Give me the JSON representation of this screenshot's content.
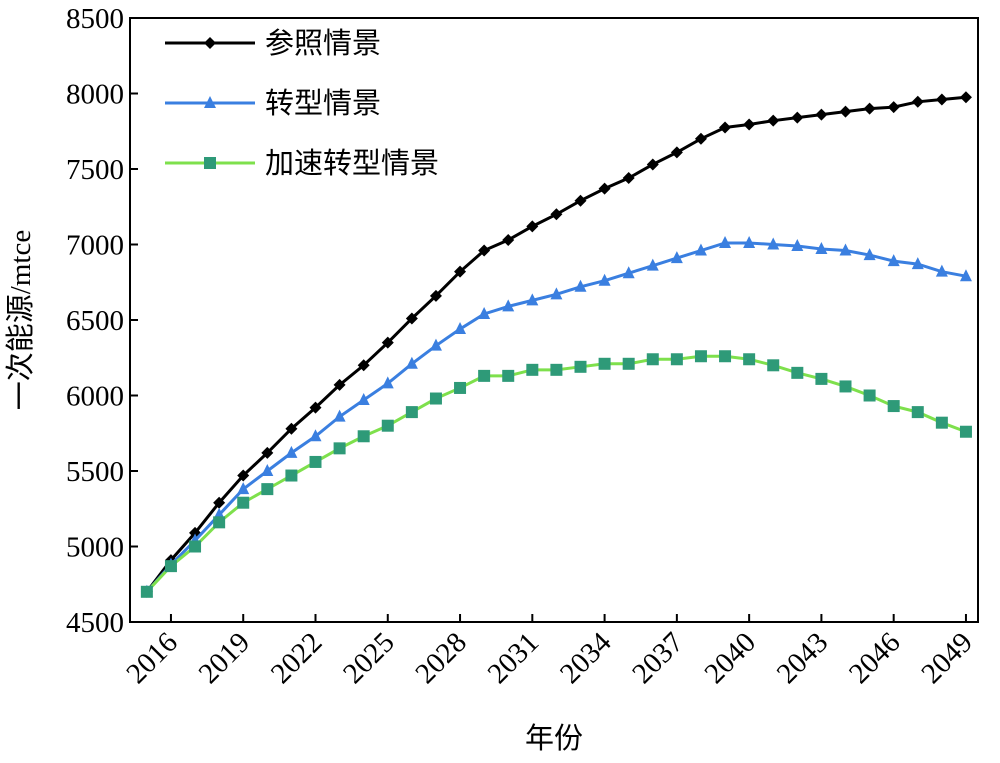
{
  "chart_data": {
    "type": "line",
    "xlabel": "年份",
    "ylabel": "一次能源/mtce",
    "x": [
      2015,
      2016,
      2017,
      2018,
      2019,
      2020,
      2021,
      2022,
      2023,
      2024,
      2025,
      2026,
      2027,
      2028,
      2029,
      2030,
      2031,
      2032,
      2033,
      2034,
      2035,
      2036,
      2037,
      2038,
      2039,
      2040,
      2041,
      2042,
      2043,
      2044,
      2045,
      2046,
      2047,
      2048,
      2049
    ],
    "series": [
      {
        "name": "参照情景",
        "color": "#000000",
        "marker": "diamond",
        "marker_color": "#000000",
        "values": [
          4700,
          4910,
          5090,
          5290,
          5470,
          5620,
          5780,
          5920,
          6070,
          6200,
          6350,
          6510,
          6660,
          6820,
          6960,
          7030,
          7120,
          7200,
          7290,
          7370,
          7440,
          7530,
          7610,
          7700,
          7775,
          7795,
          7820,
          7840,
          7860,
          7880,
          7900,
          7910,
          7945,
          7960,
          7975
        ]
      },
      {
        "name": "转型情景",
        "color": "#3a7fe0",
        "marker": "triangle",
        "marker_color": "#3a7fe0",
        "values": [
          4700,
          4880,
          5040,
          5210,
          5380,
          5500,
          5620,
          5730,
          5860,
          5970,
          6080,
          6210,
          6330,
          6440,
          6540,
          6590,
          6630,
          6670,
          6720,
          6760,
          6810,
          6860,
          6910,
          6960,
          7010,
          7010,
          7000,
          6990,
          6970,
          6960,
          6930,
          6890,
          6870,
          6820,
          6790
        ]
      },
      {
        "name": "加速转型情景",
        "color": "#7ee04c",
        "marker": "square",
        "marker_color": "#2e9a78",
        "values": [
          4700,
          4870,
          5000,
          5160,
          5290,
          5380,
          5470,
          5560,
          5650,
          5730,
          5800,
          5890,
          5980,
          6050,
          6130,
          6130,
          6170,
          6170,
          6190,
          6210,
          6210,
          6240,
          6240,
          6260,
          6260,
          6240,
          6200,
          6150,
          6110,
          6060,
          6000,
          5930,
          5890,
          5820,
          5760
        ]
      }
    ],
    "xlim": [
      2014.3,
      2049.5
    ],
    "xticks": [
      2016,
      2019,
      2022,
      2025,
      2028,
      2031,
      2034,
      2037,
      2040,
      2043,
      2046,
      2049
    ],
    "ylim": [
      4500,
      8500
    ],
    "yticks": [
      4500,
      5000,
      5500,
      6000,
      6500,
      7000,
      7500,
      8000,
      8500
    ],
    "legend": "upper left"
  }
}
